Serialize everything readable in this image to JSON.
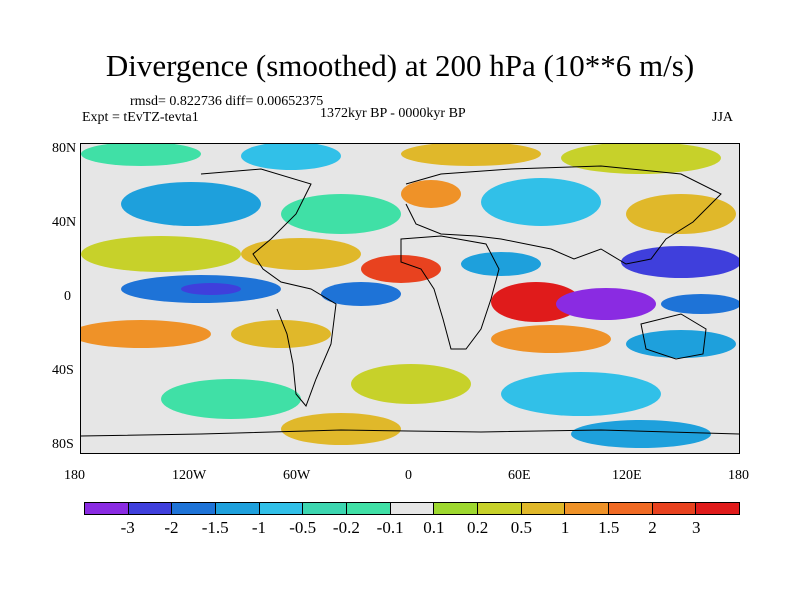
{
  "title": "Divergence (smoothed) at 200 hPa (10**6 m/s)",
  "stats": "rmsd= 0.822736 diff= 0.00652375",
  "experiment": "Expt = tEvTZ-tevta1",
  "period": "1372kyr BP - 0000kyr BP",
  "season": "JJA",
  "lat_ticks": [
    "80N",
    "40N",
    "0",
    "40S",
    "80S"
  ],
  "lon_ticks": [
    "180",
    "120W",
    "60W",
    "0",
    "60E",
    "120E",
    "180"
  ],
  "colorbar": {
    "colors": [
      "#8a2be2",
      "#3f3fdc",
      "#1e73d7",
      "#1ea0dc",
      "#31c0e8",
      "#3cd6b0",
      "#40e0a6",
      "#e6e6e6",
      "#9ed82f",
      "#c7d12a",
      "#e0b82a",
      "#ef9228",
      "#f06a24",
      "#e8421f",
      "#e01b1b"
    ],
    "labels": [
      "-3",
      "-2",
      "-1.5",
      "-1",
      "-0.5",
      "-0.2",
      "-0.1",
      "0.1",
      "0.2",
      "0.5",
      "1",
      "1.5",
      "2",
      "3"
    ]
  }
}
